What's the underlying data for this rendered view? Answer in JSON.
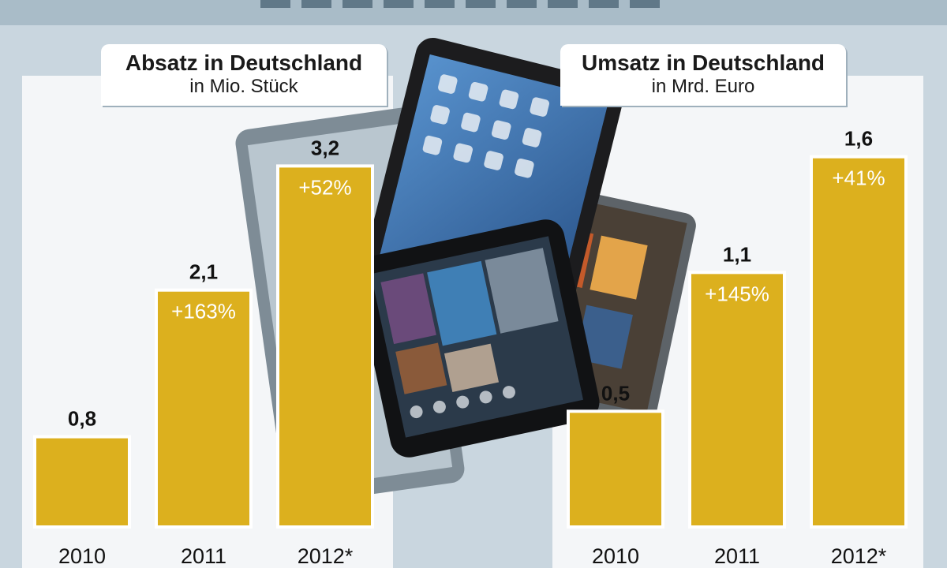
{
  "charts": [
    {
      "title": "Absatz in Deutschland",
      "subtitle": "in Mio. Stück"
    },
    {
      "title": "Umsatz in Deutschland",
      "subtitle": "in Mrd. Euro"
    }
  ],
  "chart_data": [
    {
      "type": "bar",
      "title": "Absatz in Deutschland",
      "subtitle": "in Mio. Stück",
      "categories": [
        "2010",
        "2011",
        "2012*"
      ],
      "values": [
        0.8,
        2.1,
        3.2
      ],
      "value_labels": [
        "0,8",
        "2,1",
        "3,2"
      ],
      "growth_labels": [
        "",
        "+163%",
        "+52%"
      ],
      "ylim": [
        0,
        4.0
      ],
      "bar_color": "#dcb01e",
      "grid": false
    },
    {
      "type": "bar",
      "title": "Umsatz in Deutschland",
      "subtitle": "in Mrd. Euro",
      "categories": [
        "2010",
        "2011",
        "2012*"
      ],
      "values": [
        0.5,
        1.1,
        1.6
      ],
      "value_labels": [
        "0,5",
        "1,1",
        "1,6"
      ],
      "growth_labels": [
        "",
        "+145%",
        "+41%"
      ],
      "ylim": [
        0,
        1.95
      ],
      "bar_color": "#dcb01e",
      "grid": false
    }
  ]
}
